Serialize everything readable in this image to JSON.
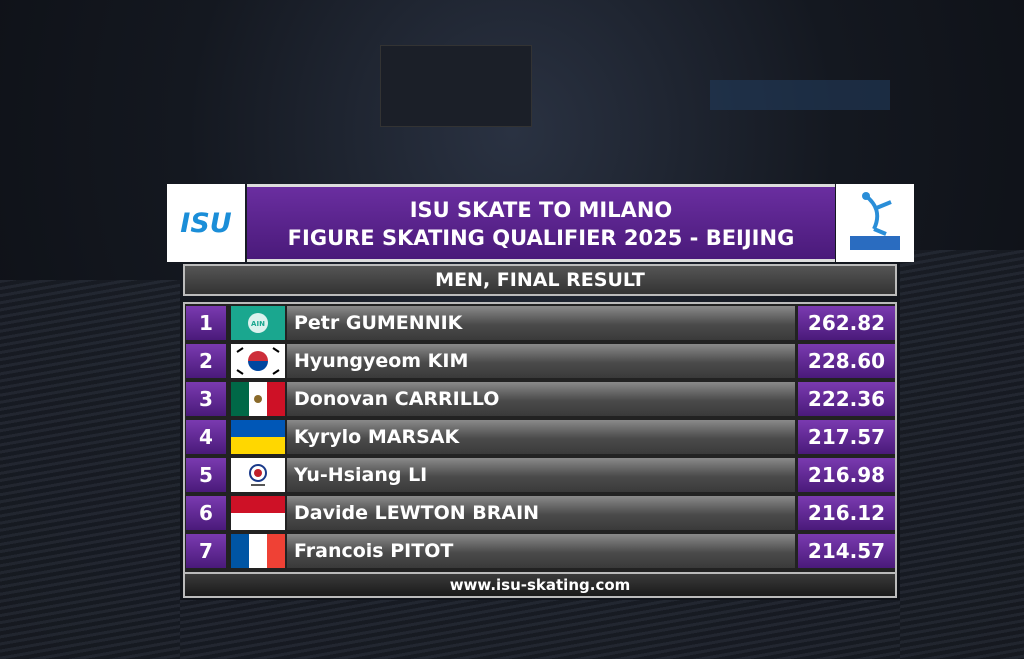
{
  "header": {
    "logo_left": "ISU",
    "title_line1": "ISU SKATE TO MILANO",
    "title_line2": "FIGURE SKATING QUALIFIER 2025 - BEIJING",
    "subtitle": "MEN, FINAL RESULT"
  },
  "table": {
    "rows": [
      {
        "rank": 1,
        "flag_text": "AIN",
        "name": "Petr GUMENNIK",
        "score": "262.82"
      },
      {
        "rank": 2,
        "name": "Hyungyeom KIM",
        "score": "228.60"
      },
      {
        "rank": 3,
        "name": "Donovan CARRILLO",
        "score": "222.36"
      },
      {
        "rank": 4,
        "name": "Kyrylo MARSAK",
        "score": "217.57"
      },
      {
        "rank": 5,
        "name": "Yu-Hsiang LI",
        "score": "216.98"
      },
      {
        "rank": 6,
        "name": "Davide LEWTON BRAIN",
        "score": "216.12"
      },
      {
        "rank": 7,
        "name": "Francois PITOT",
        "score": "214.57"
      }
    ]
  },
  "footer": {
    "url": "www.isu-skating.com"
  }
}
